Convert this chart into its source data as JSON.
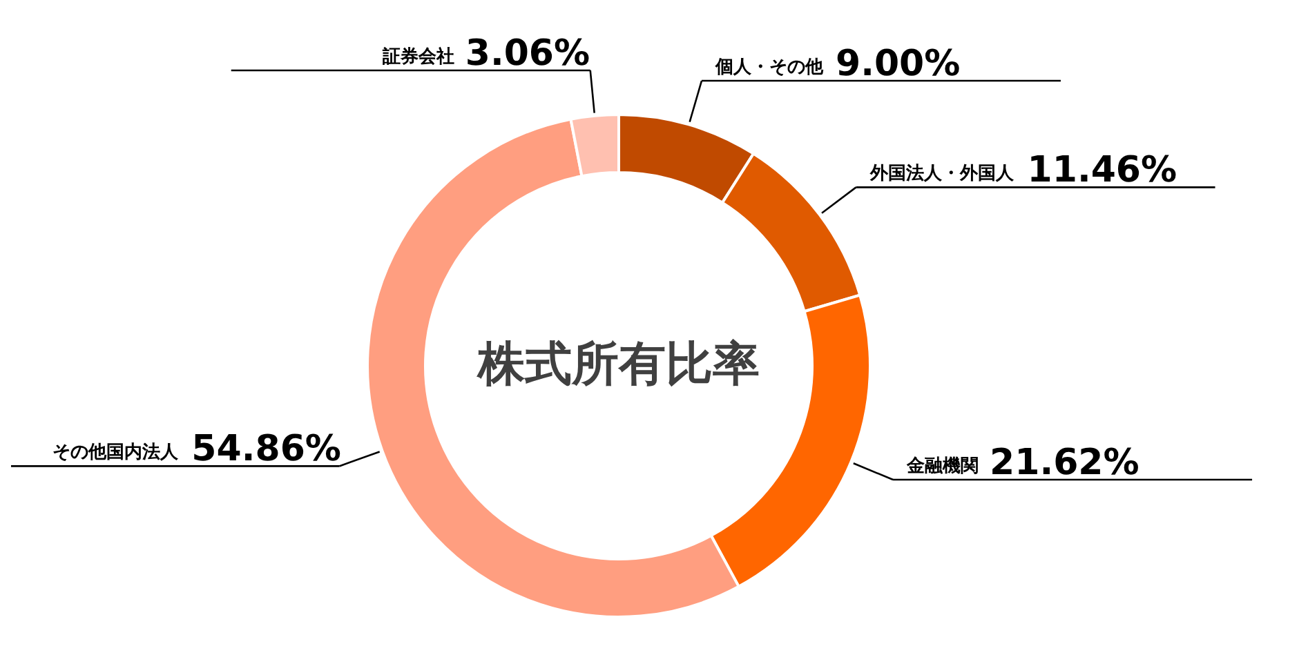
{
  "chart_data": {
    "type": "donut",
    "title": "株式所有比率",
    "categories": [
      "個人・その他",
      "外国法人・外国人",
      "金融機関",
      "その他国内法人",
      "証券会社"
    ],
    "values": [
      9.0,
      11.46,
      21.62,
      54.86,
      3.06
    ],
    "value_labels": [
      "9.00%",
      "11.46%",
      "21.62%",
      "54.86%",
      "3.06%"
    ],
    "colors": [
      "#c04a00",
      "#e05a00",
      "#ff6600",
      "#ff9e80",
      "#ffc0b0"
    ]
  }
}
